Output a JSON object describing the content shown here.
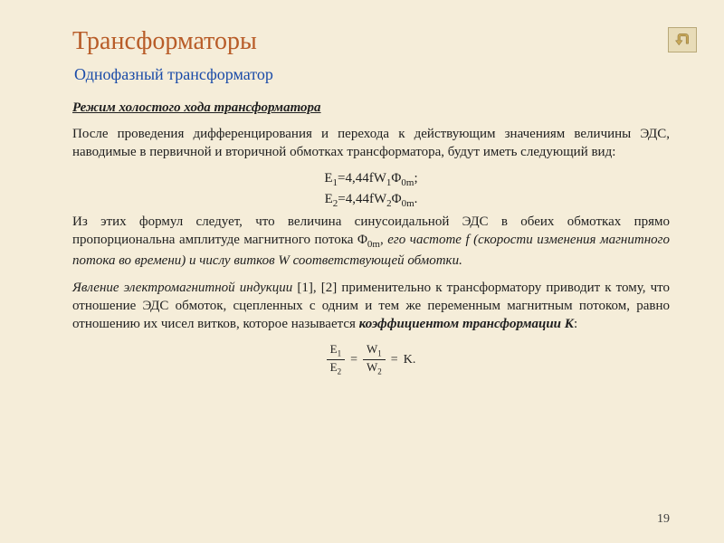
{
  "colors": {
    "background": "#f5edd9",
    "title": "#b85c28",
    "subtitle": "#1a4ba8",
    "text": "#202020",
    "button_bg": "#e8dcb8",
    "button_border": "#b8a878",
    "arrow_fill": "#c8a858"
  },
  "typography": {
    "title_size": 28,
    "subtitle_size": 18,
    "body_size": 15,
    "font_family": "Times New Roman"
  },
  "title": "Трансформаторы",
  "subtitle": "Однофазный трансформатор",
  "section_heading": "Режим холостого хода трансформатора",
  "para1_html": "После проведения дифференцирования и перехода к действующим значениям величины ЭДС, наводимые в первичной и вторичной обмотках трансформатора, будут иметь следующий вид:",
  "formula1_html": "E<sub>1</sub>=4,44fW<sub>1</sub>Φ<sub>0m</sub>;",
  "formula2_html": "E<sub>2</sub>=4,44fW<sub>2</sub>Φ<sub>0m</sub>.",
  "para2_html": "Из этих формул следует, что величина синусоидальной ЭДС в обеих обмотках прямо пропорциональна амплитуде магнитного потока Φ<sub>0m</sub>, <span class=\"italic\">его частоте f (скорости изменения магнитного потока во времени) и числу витков W соответствующей обмотки.</span>",
  "para3_html": "<span class=\"italic\">Явление электромагнитной индукции</span> [1], [2] применительно к трансформатору приводит к тому, что отношение ЭДС обмоток, сцепленных с одним и тем же переменным магнитным потоком, равно отношению их чисел витков, которое называется <span class=\"bolditalic\">коэффициентом трансформации К</span>:",
  "fraction": {
    "left_top": "E<sub>1</sub>",
    "left_bot": "E<sub>2</sub>",
    "right_top": "W<sub>1</sub>",
    "right_bot": "W<sub>2</sub>",
    "rhs": "K."
  },
  "page_number": "19",
  "nav": {
    "back_label": "back"
  }
}
